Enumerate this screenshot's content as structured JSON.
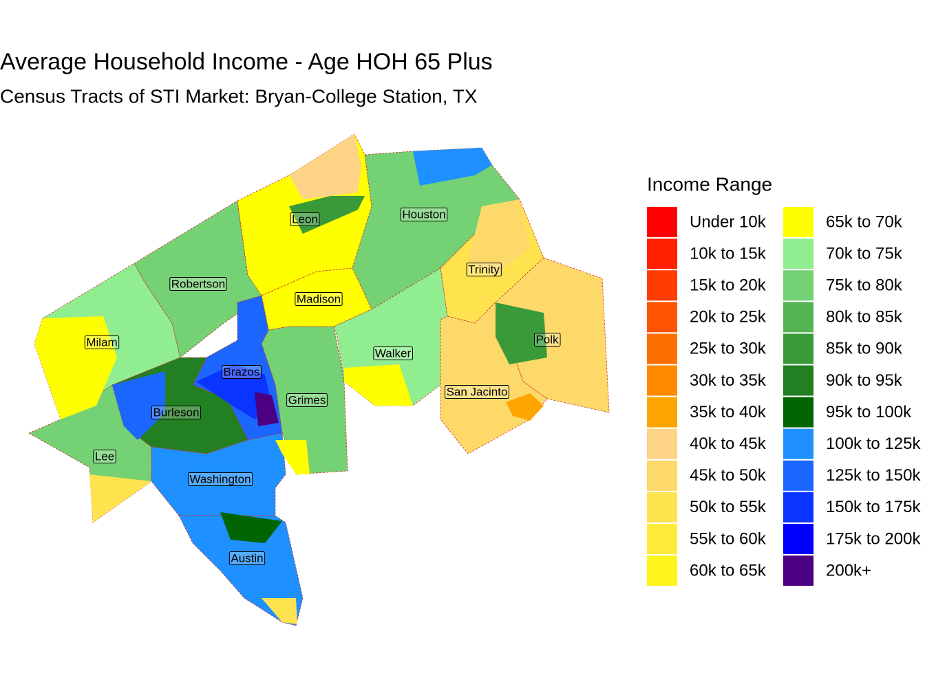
{
  "title": "Average Household Income - Age HOH 65 Plus",
  "subtitle": "Census Tracts of STI Market: Bryan-College Station, TX",
  "legend": {
    "title": "Income Range",
    "items": [
      {
        "label": "Under 10k",
        "color": "#ff0000"
      },
      {
        "label": "10k to 15k",
        "color": "#ff2000"
      },
      {
        "label": "15k to 20k",
        "color": "#ff3c00"
      },
      {
        "label": "20k to 25k",
        "color": "#ff5500"
      },
      {
        "label": "25k to 30k",
        "color": "#ff6e00"
      },
      {
        "label": "30k to 35k",
        "color": "#ff8a00"
      },
      {
        "label": "35k to 40k",
        "color": "#ffa500"
      },
      {
        "label": "40k to 45k",
        "color": "#fdd385"
      },
      {
        "label": "45k to 50k",
        "color": "#fdd96a"
      },
      {
        "label": "50k to 55k",
        "color": "#fee24e"
      },
      {
        "label": "55k to 60k",
        "color": "#feea38"
      },
      {
        "label": "60k to 65k",
        "color": "#fff51e"
      },
      {
        "label": "65k to 70k",
        "color": "#ffff00"
      },
      {
        "label": "70k to 75k",
        "color": "#90ee90"
      },
      {
        "label": "75k to 80k",
        "color": "#74d174"
      },
      {
        "label": "80k to 85k",
        "color": "#55b555"
      },
      {
        "label": "85k to 90k",
        "color": "#3a9a3a"
      },
      {
        "label": "90k to 95k",
        "color": "#228022"
      },
      {
        "label": "95k to 100k",
        "color": "#006400"
      },
      {
        "label": "100k to 125k",
        "color": "#1e90ff"
      },
      {
        "label": "125k to 150k",
        "color": "#1a66ff"
      },
      {
        "label": "150k to 175k",
        "color": "#0a34ff"
      },
      {
        "label": "175k to 200k",
        "color": "#0000ff"
      },
      {
        "label": "200k+",
        "color": "#4b0082"
      }
    ]
  },
  "counties": [
    "Leon",
    "Houston",
    "Robertson",
    "Madison",
    "Trinity",
    "Milam",
    "Walker",
    "Polk",
    "Brazos",
    "Grimes",
    "San Jacinto",
    "Burleson",
    "Lee",
    "Washington",
    "Austin"
  ]
}
